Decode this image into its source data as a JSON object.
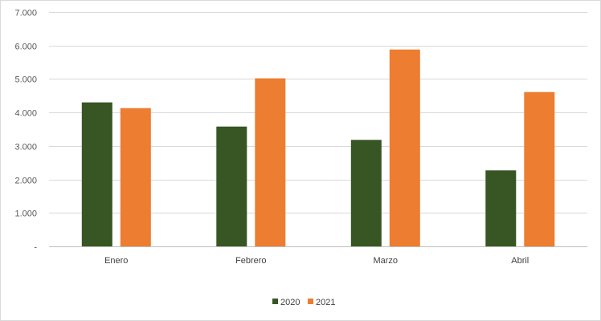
{
  "chart_data": {
    "type": "bar",
    "title": "",
    "xlabel": "",
    "ylabel": "",
    "categories": [
      "Enero",
      "Febrero",
      "Marzo",
      "Abril"
    ],
    "series": [
      {
        "name": "2020",
        "color": "#375623",
        "values": [
          4300,
          3580,
          3180,
          2270
        ]
      },
      {
        "name": "2021",
        "color": "#ED7D31",
        "values": [
          4130,
          5020,
          5880,
          4610
        ]
      }
    ],
    "ylim": [
      0,
      7000
    ],
    "yticks": [
      0,
      1000,
      2000,
      3000,
      4000,
      5000,
      6000,
      7000
    ],
    "ytick_labels": [
      "-",
      "1.000",
      "2.000",
      "3.000",
      "4.000",
      "5.000",
      "6.000",
      "7.000"
    ],
    "grid": true,
    "legend_position": "bottom"
  }
}
